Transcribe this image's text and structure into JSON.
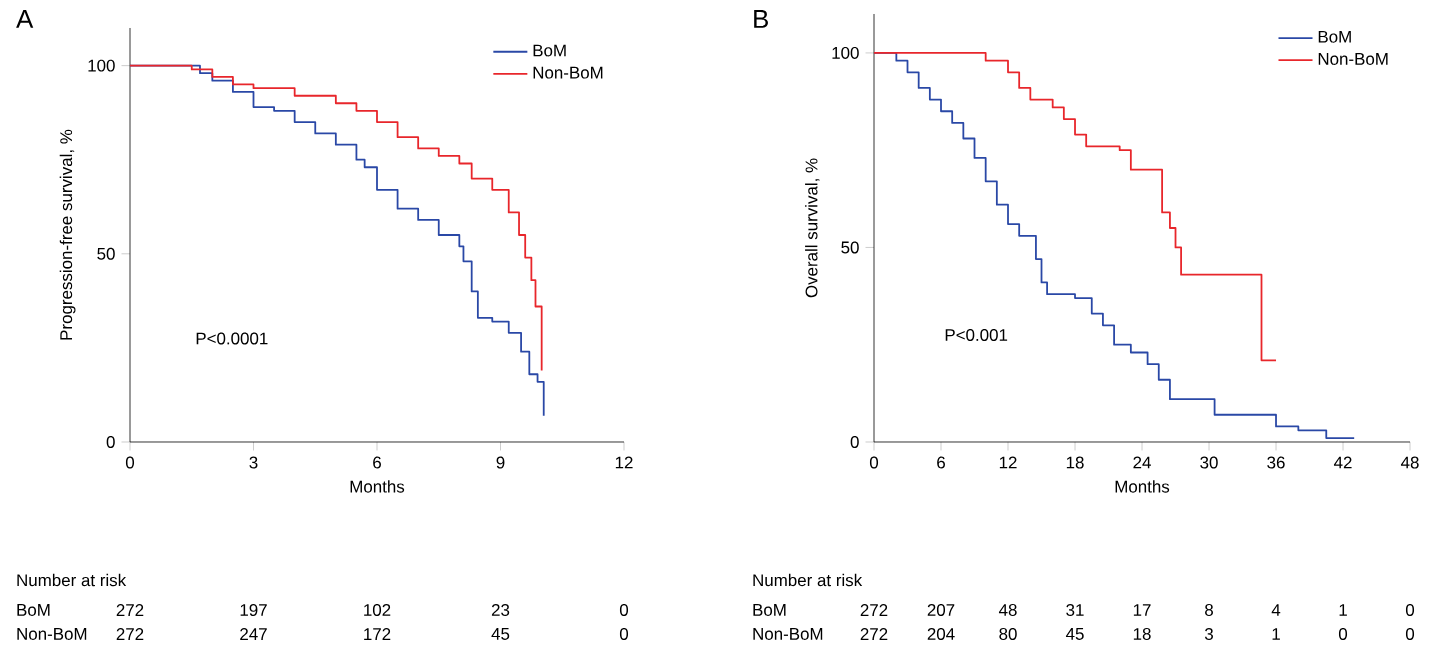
{
  "chart_data": [
    {
      "type": "step",
      "title": "A",
      "xlabel": "Months",
      "ylabel": "Progression-free survival, %",
      "xlim": [
        0,
        12
      ],
      "ylim": [
        0,
        110
      ],
      "xticks": [
        0,
        3,
        6,
        9,
        12
      ],
      "yticks": [
        0,
        50,
        100
      ],
      "legend": "top right",
      "series": [
        {
          "name": "BoM",
          "color": "#2a48a6",
          "x": [
            0,
            1.7,
            2,
            2.5,
            3,
            3.5,
            4,
            4.5,
            5,
            5.5,
            5.7,
            6,
            6.5,
            7,
            7.5,
            8,
            8.1,
            8.3,
            8.45,
            8.8,
            9.2,
            9.5,
            9.7,
            9.9,
            10.05
          ],
          "values": [
            100,
            98,
            96,
            93,
            89,
            88,
            85,
            82,
            79,
            75,
            73,
            67,
            62,
            59,
            55,
            52,
            48,
            40,
            33,
            32,
            29,
            24,
            18,
            16,
            7
          ]
        },
        {
          "name": "Non-BoM",
          "color": "#e8262b",
          "x": [
            0,
            1.5,
            2,
            2.5,
            3,
            4,
            5,
            5.5,
            6,
            6.5,
            7,
            7.5,
            8,
            8.3,
            8.8,
            9.2,
            9.45,
            9.6,
            9.75,
            9.85,
            10.0
          ],
          "values": [
            100,
            99,
            97,
            95,
            94,
            92,
            90,
            88,
            85,
            81,
            78,
            76,
            74,
            70,
            67,
            61,
            55,
            49,
            43,
            36,
            19
          ]
        }
      ],
      "annotations": [
        "P<0.0001",
        "Number at risk",
        "BoM",
        "272",
        "197",
        "102",
        "23",
        "0",
        "Non-BoM",
        "272",
        "247",
        "172",
        "45",
        "0"
      ]
    },
    {
      "type": "step",
      "title": "B",
      "xlabel": "Months",
      "ylabel": "Overall survival, %",
      "xlim": [
        0,
        48
      ],
      "ylim": [
        0,
        110
      ],
      "xticks": [
        0,
        6,
        12,
        18,
        24,
        30,
        36,
        42,
        48
      ],
      "yticks": [
        0,
        50,
        100
      ],
      "legend": "top right",
      "series": [
        {
          "name": "BoM",
          "color": "#2a48a6",
          "x": [
            0,
            2,
            3,
            4,
            5,
            6,
            7,
            8,
            9,
            10,
            11,
            12,
            13,
            14.5,
            15,
            15.5,
            18,
            19.5,
            20.5,
            21.5,
            23,
            24.5,
            25.5,
            26.5,
            30.5,
            36,
            38,
            40.5,
            43
          ],
          "values": [
            100,
            98,
            95,
            91,
            88,
            85,
            82,
            78,
            73,
            67,
            61,
            56,
            53,
            47,
            41,
            38,
            37,
            33,
            30,
            25,
            23,
            20,
            16,
            11,
            7,
            4,
            3,
            1,
            1
          ]
        },
        {
          "name": "Non-BoM",
          "color": "#e8262b",
          "x": [
            0,
            9,
            10,
            12,
            13,
            14,
            16,
            17,
            18,
            19,
            22,
            23,
            25.8,
            26.5,
            27,
            27.5,
            34.7,
            36
          ],
          "values": [
            100,
            100,
            98,
            95,
            91,
            88,
            86,
            83,
            79,
            76,
            75,
            70,
            59,
            55,
            50,
            43,
            21,
            21
          ]
        }
      ],
      "annotations": [
        "P<0.001",
        "Number at risk",
        "BoM",
        "272",
        "207",
        "48",
        "31",
        "17",
        "8",
        "4",
        "1",
        "0",
        "Non-BoM",
        "272",
        "204",
        "80",
        "45",
        "18",
        "3",
        "1",
        "0",
        "0"
      ]
    }
  ]
}
